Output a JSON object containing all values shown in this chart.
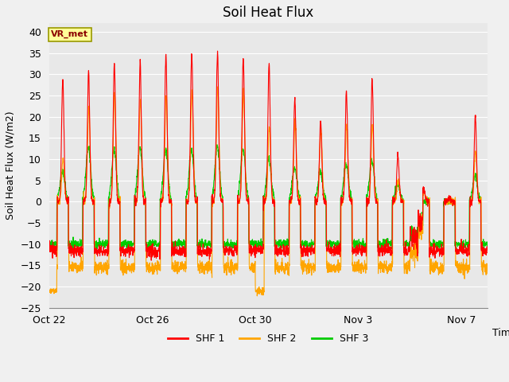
{
  "title": "Soil Heat Flux",
  "ylabel": "Soil Heat Flux (W/m2)",
  "xlabel": "Time",
  "annotation": "VR_met",
  "ylim": [
    -25,
    42
  ],
  "yticks": [
    -25,
    -20,
    -15,
    -10,
    -5,
    0,
    5,
    10,
    15,
    20,
    25,
    30,
    35,
    40
  ],
  "xtick_labels": [
    "Oct 22",
    "Oct 26",
    "Oct 30",
    "Nov 3",
    "Nov 7"
  ],
  "xtick_pos": [
    0,
    4,
    8,
    12,
    16
  ],
  "xlim": [
    0,
    17
  ],
  "colors": {
    "SHF 1": "#ff0000",
    "SHF 2": "#ffa500",
    "SHF 3": "#00cc00"
  },
  "legend_labels": [
    "SHF 1",
    "SHF 2",
    "SHF 3"
  ],
  "fig_bg_color": "#f0f0f0",
  "plot_bg_color": "#e8e8e8",
  "grid_color": "#ffffff",
  "linewidth": 0.8,
  "title_fontsize": 12,
  "label_fontsize": 9,
  "tick_fontsize": 9,
  "n_days": 17,
  "steps_per_day": 144,
  "annotation_fc": "#ffff99",
  "annotation_ec": "#999900",
  "annotation_color": "#8B0000"
}
